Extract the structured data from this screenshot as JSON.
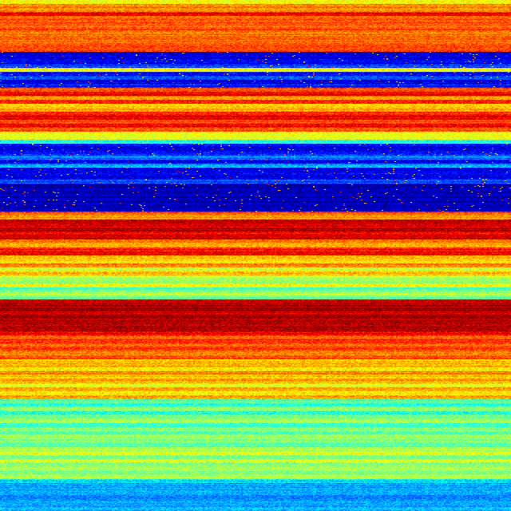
{
  "chart_data": {
    "type": "heatmap",
    "title": "",
    "xlabel": "",
    "ylabel": "",
    "colormap": "jet",
    "value_range": [
      0,
      1
    ],
    "axes_visible": false,
    "grid": false,
    "legend": "none",
    "row_levels": [
      0.6,
      0.75,
      0.75,
      0.88,
      0.78,
      0.8,
      0.76,
      0.8,
      0.78,
      0.8,
      0.77,
      0.79,
      0.8,
      0.08,
      0.1,
      0.1,
      0.2,
      0.62,
      0.12,
      0.2,
      0.12,
      0.15,
      0.8,
      0.88,
      0.75,
      0.85,
      0.65,
      0.7,
      0.85,
      0.9,
      0.8,
      0.88,
      0.82,
      0.62,
      0.6,
      0.4,
      0.12,
      0.1,
      0.15,
      0.25,
      0.12,
      0.3,
      0.1,
      0.12,
      0.1,
      0.2,
      0.05,
      0.05,
      0.05,
      0.06,
      0.05,
      0.05,
      0.06,
      0.78,
      0.72,
      0.92,
      0.9,
      0.95,
      0.88,
      0.92,
      0.75,
      0.72,
      0.85,
      0.88,
      0.7,
      0.65,
      0.75,
      0.6,
      0.7,
      0.55,
      0.5,
      0.6,
      0.45,
      0.55,
      0.5,
      0.95,
      0.95,
      0.97,
      0.93,
      0.95,
      0.96,
      0.94,
      0.95,
      0.9,
      0.8,
      0.85,
      0.78,
      0.82,
      0.75,
      0.8,
      0.7,
      0.72,
      0.65,
      0.75,
      0.68,
      0.7,
      0.62,
      0.72,
      0.66,
      0.7,
      0.45,
      0.42,
      0.5,
      0.4,
      0.5,
      0.55,
      0.45,
      0.52,
      0.48,
      0.55,
      0.5,
      0.47,
      0.55,
      0.58,
      0.5,
      0.6,
      0.52,
      0.56,
      0.5,
      0.55,
      0.35,
      0.3,
      0.28,
      0.32,
      0.25,
      0.3,
      0.28,
      0.32
    ],
    "column_count": 320
  }
}
